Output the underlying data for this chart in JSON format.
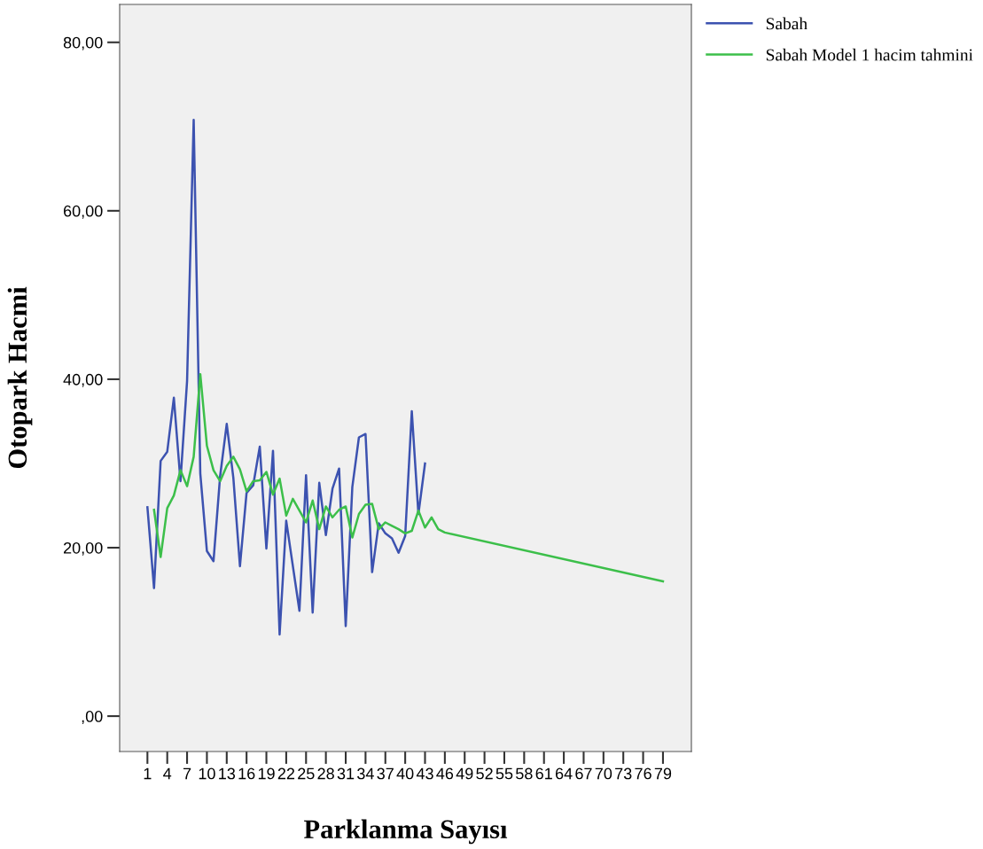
{
  "chart_data": {
    "type": "line",
    "xlabel": "Parklanma Sayısı",
    "ylabel": "Otopark Hacmi",
    "xlim": [
      -3.2,
      83.3
    ],
    "xticks": [
      1,
      4,
      7,
      10,
      13,
      16,
      19,
      22,
      25,
      28,
      31,
      34,
      37,
      40,
      43,
      46,
      49,
      52,
      55,
      58,
      61,
      64,
      67,
      70,
      73,
      76,
      79
    ],
    "ylim": [
      -4.2,
      84.5
    ],
    "yticks": [
      {
        "value": 0,
        "label": ",00"
      },
      {
        "value": 20,
        "label": "20,00"
      },
      {
        "value": 40,
        "label": "40,00"
      },
      {
        "value": 60,
        "label": "60,00"
      },
      {
        "value": 80,
        "label": "80,00"
      }
    ],
    "grid": false,
    "legend": "top right",
    "marker": "none",
    "line_style": "solid",
    "series": [
      {
        "name": "Sabah",
        "color": "#3c52b0",
        "x": [
          1,
          2,
          3,
          4,
          5,
          6,
          7,
          8,
          9,
          10,
          11,
          12,
          13,
          14,
          15,
          16,
          17,
          18,
          19,
          20,
          21,
          22,
          24,
          25,
          26,
          27,
          28,
          29,
          30,
          31,
          32,
          33,
          34,
          35,
          36,
          37,
          38,
          39,
          40,
          41,
          42,
          43
        ],
        "values": [
          24.8,
          15.2,
          30.3,
          31.4,
          37.8,
          27.9,
          39.8,
          70.8,
          28.8,
          19.6,
          18.4,
          28.5,
          34.7,
          28.3,
          17.8,
          26.5,
          27.4,
          32.0,
          19.9,
          31.5,
          9.7,
          23.2,
          12.5,
          28.6,
          12.3,
          27.7,
          21.5,
          27.0,
          29.4,
          10.7,
          27.2,
          33.1,
          33.5,
          17.1,
          22.9,
          21.7,
          21.1,
          19.4,
          21.4,
          36.2,
          24.0,
          30.0
        ]
      },
      {
        "name": "Sabah Model 1 hacim tahmini",
        "color": "#3cbf4a",
        "x": [
          2,
          3,
          4,
          5,
          6,
          7,
          8,
          9,
          10,
          11,
          12,
          13,
          14,
          15,
          16,
          17,
          18,
          19,
          20,
          21,
          22,
          23,
          24,
          25,
          26,
          27,
          28,
          29,
          30,
          31,
          32,
          33,
          34,
          35,
          36,
          37,
          38,
          39,
          40,
          41,
          42,
          43,
          44,
          45,
          46,
          79
        ],
        "values": [
          24.5,
          18.9,
          24.7,
          26.2,
          29.2,
          27.3,
          30.8,
          40.6,
          32.1,
          29.2,
          27.9,
          29.7,
          30.8,
          29.3,
          26.7,
          27.9,
          28.0,
          29.0,
          26.3,
          28.2,
          23.8,
          25.8,
          24.4,
          23.0,
          25.6,
          22.2,
          24.9,
          23.6,
          24.5,
          24.9,
          21.2,
          24.0,
          25.1,
          25.2,
          22.2,
          23.0,
          22.6,
          22.2,
          21.7,
          22.0,
          24.4,
          22.4,
          23.6,
          22.2,
          21.8,
          16.0
        ]
      }
    ]
  }
}
